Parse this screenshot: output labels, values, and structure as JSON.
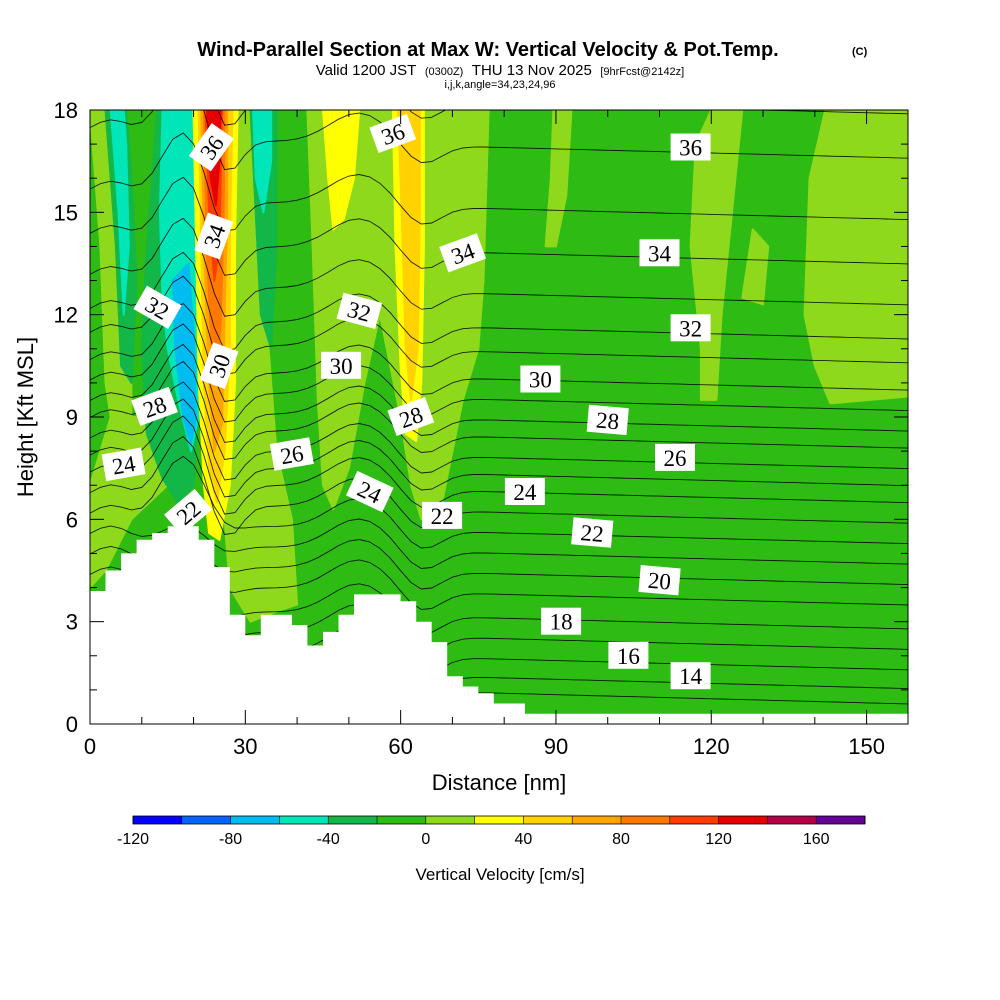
{
  "chart_data": {
    "type": "heatmap",
    "title": "Wind-Parallel Section at Max W: Vertical Velocity & Pot.Temp.",
    "title_mark": "(C)",
    "subtitle": {
      "valid": "Valid 1200 JST",
      "utc": "(0300Z)",
      "date": "THU 13 Nov 2025",
      "fcst": "[9hrFcst@2142z]"
    },
    "indices": "i,j,k,angle=34,23,24,96",
    "xlabel": "Distance [nm]",
    "ylabel": "Height [Kft MSL]",
    "xlim": [
      0,
      158
    ],
    "ylim": [
      0,
      18
    ],
    "xticks": [
      0,
      30,
      60,
      90,
      120,
      150
    ],
    "yticks": [
      0,
      3,
      6,
      9,
      12,
      15,
      18
    ],
    "colorbar": {
      "label": "Vertical Velocity [cm/s]",
      "levels": [
        -120,
        -100,
        -80,
        -60,
        -40,
        -20,
        0,
        20,
        40,
        60,
        80,
        100,
        120,
        140,
        160,
        180
      ],
      "colors": [
        "#0000ff",
        "#0064ff",
        "#00bcf0",
        "#00e6b8",
        "#12b748",
        "#2dbb14",
        "#8fd91c",
        "#ffff00",
        "#ffd200",
        "#ffa500",
        "#ff7800",
        "#ff3c00",
        "#e60000",
        "#b40046",
        "#640096"
      ],
      "tick_labels": [
        -120,
        -80,
        -40,
        0,
        40,
        80,
        120,
        160
      ]
    },
    "background_w_range": "0 to 20 cm/s",
    "terrain_kft": [
      [
        0,
        3.9
      ],
      [
        3,
        3.9
      ],
      [
        3,
        4.5
      ],
      [
        6,
        4.5
      ],
      [
        6,
        5.0
      ],
      [
        9,
        5.0
      ],
      [
        9,
        5.4
      ],
      [
        12,
        5.4
      ],
      [
        12,
        5.6
      ],
      [
        15,
        5.6
      ],
      [
        15,
        5.8
      ],
      [
        21,
        5.8
      ],
      [
        21,
        5.4
      ],
      [
        24,
        5.4
      ],
      [
        24,
        4.6
      ],
      [
        27,
        4.6
      ],
      [
        27,
        3.2
      ],
      [
        30,
        3.2
      ],
      [
        30,
        2.6
      ],
      [
        33,
        2.6
      ],
      [
        33,
        3.2
      ],
      [
        39,
        3.2
      ],
      [
        39,
        2.9
      ],
      [
        42,
        2.9
      ],
      [
        42,
        2.3
      ],
      [
        45,
        2.3
      ],
      [
        45,
        2.7
      ],
      [
        48,
        2.7
      ],
      [
        48,
        3.2
      ],
      [
        51,
        3.2
      ],
      [
        51,
        3.8
      ],
      [
        57,
        3.8
      ],
      [
        60,
        3.8
      ],
      [
        60,
        3.6
      ],
      [
        63,
        3.6
      ],
      [
        63,
        3.0
      ],
      [
        66,
        3.0
      ],
      [
        66,
        2.4
      ],
      [
        69,
        2.4
      ],
      [
        69,
        1.4
      ],
      [
        72,
        1.4
      ],
      [
        72,
        1.1
      ],
      [
        75,
        1.1
      ],
      [
        75,
        0.9
      ],
      [
        78,
        0.9
      ],
      [
        78,
        0.6
      ],
      [
        84,
        0.6
      ],
      [
        84,
        0.3
      ],
      [
        158,
        0.3
      ]
    ],
    "w_features": [
      {
        "name": "updraft core",
        "x": [
          21,
          28
        ],
        "y": [
          5.5,
          18
        ],
        "w_max": 140
      },
      {
        "name": "downdraft core",
        "x": [
          14,
          21
        ],
        "y": [
          6,
          15
        ],
        "w_min": -100
      },
      {
        "name": "updraft band",
        "x": [
          45,
          52
        ],
        "y": [
          14.5,
          18
        ],
        "w_max": 40
      },
      {
        "name": "updraft band",
        "x": [
          59,
          64
        ],
        "y": [
          8,
          18
        ],
        "w_max": 40
      }
    ],
    "theta_contour_labels": [
      {
        "value": 36,
        "x": 23.5,
        "y": 16.9,
        "rot": -55
      },
      {
        "value": 36,
        "x": 58.5,
        "y": 17.3,
        "rot": -20
      },
      {
        "value": 36,
        "x": 116,
        "y": 16.9,
        "rot": 0
      },
      {
        "value": 34,
        "x": 24,
        "y": 14.3,
        "rot": -70
      },
      {
        "value": 34,
        "x": 72,
        "y": 13.8,
        "rot": -20
      },
      {
        "value": 34,
        "x": 110,
        "y": 13.8,
        "rot": 0
      },
      {
        "value": 32,
        "x": 13,
        "y": 12.2,
        "rot": 30
      },
      {
        "value": 32,
        "x": 52,
        "y": 12.1,
        "rot": 15
      },
      {
        "value": 32,
        "x": 116,
        "y": 11.6,
        "rot": 0
      },
      {
        "value": 30,
        "x": 25,
        "y": 10.5,
        "rot": -70
      },
      {
        "value": 30,
        "x": 48.5,
        "y": 10.5,
        "rot": 0
      },
      {
        "value": 30,
        "x": 87,
        "y": 10.1,
        "rot": 0
      },
      {
        "value": 28,
        "x": 12.5,
        "y": 9.3,
        "rot": -20
      },
      {
        "value": 28,
        "x": 62,
        "y": 9.0,
        "rot": -20
      },
      {
        "value": 28,
        "x": 100,
        "y": 8.9,
        "rot": 5
      },
      {
        "value": 26,
        "x": 39,
        "y": 7.9,
        "rot": -10
      },
      {
        "value": 26,
        "x": 113,
        "y": 7.8,
        "rot": 0
      },
      {
        "value": 24,
        "x": 6.5,
        "y": 7.6,
        "rot": -10
      },
      {
        "value": 24,
        "x": 54,
        "y": 6.8,
        "rot": 25
      },
      {
        "value": 24,
        "x": 84,
        "y": 6.8,
        "rot": 0
      },
      {
        "value": 22,
        "x": 19,
        "y": 6.2,
        "rot": -40
      },
      {
        "value": 22,
        "x": 68,
        "y": 6.1,
        "rot": 0
      },
      {
        "value": 22,
        "x": 97,
        "y": 5.6,
        "rot": 5
      },
      {
        "value": 20,
        "x": 110,
        "y": 4.2,
        "rot": 5
      },
      {
        "value": 18,
        "x": 91,
        "y": 3.0,
        "rot": 0
      },
      {
        "value": 16,
        "x": 104,
        "y": 2.0,
        "rot": 0
      },
      {
        "value": 14,
        "x": 116,
        "y": 1.4,
        "rot": 0
      }
    ],
    "theta_levels": [
      14,
      15,
      16,
      17,
      18,
      19,
      20,
      21,
      22,
      23,
      24,
      25,
      26,
      27,
      28,
      29,
      30,
      31,
      32,
      33,
      34,
      35,
      36,
      37
    ]
  }
}
